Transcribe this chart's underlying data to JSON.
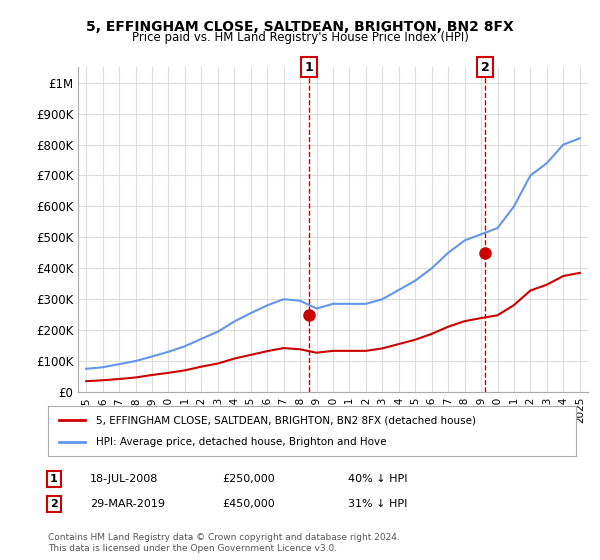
{
  "title": "5, EFFINGHAM CLOSE, SALTDEAN, BRIGHTON, BN2 8FX",
  "subtitle": "Price paid vs. HM Land Registry's House Price Index (HPI)",
  "legend_property": "5, EFFINGHAM CLOSE, SALTDEAN, BRIGHTON, BN2 8FX (detached house)",
  "legend_hpi": "HPI: Average price, detached house, Brighton and Hove",
  "footnote": "Contains HM Land Registry data © Crown copyright and database right 2024.\nThis data is licensed under the Open Government Licence v3.0.",
  "sale1_label": "1",
  "sale1_date": "18-JUL-2008",
  "sale1_price": "£250,000",
  "sale1_pct": "40% ↓ HPI",
  "sale1_year": 2008.54,
  "sale1_value": 250000,
  "sale2_label": "2",
  "sale2_date": "29-MAR-2019",
  "sale2_price": "£450,000",
  "sale2_pct": "31% ↓ HPI",
  "sale2_year": 2019.24,
  "sale2_value": 450000,
  "hpi_color": "#6495ED",
  "price_color": "#CC0000",
  "sale_marker_color": "#CC0000",
  "dashed_line_color": "#CC0000",
  "ylim": [
    0,
    1050000
  ],
  "yticks": [
    0,
    100000,
    200000,
    300000,
    400000,
    500000,
    600000,
    700000,
    800000,
    900000,
    1000000
  ],
  "ytick_labels": [
    "£0",
    "£100K",
    "£200K",
    "£300K",
    "£400K",
    "£500K",
    "£600K",
    "£700K",
    "£800K",
    "£900K",
    "£1M"
  ],
  "hpi_years": [
    1995,
    1996,
    1997,
    1998,
    1999,
    2000,
    2001,
    2002,
    2003,
    2004,
    2005,
    2006,
    2007,
    2008,
    2009,
    2010,
    2011,
    2012,
    2013,
    2014,
    2015,
    2016,
    2017,
    2018,
    2019,
    2020,
    2021,
    2022,
    2023,
    2024,
    2025
  ],
  "hpi_values": [
    75000,
    80000,
    90000,
    100000,
    115000,
    130000,
    148000,
    172000,
    195000,
    228000,
    255000,
    280000,
    300000,
    295000,
    270000,
    285000,
    285000,
    285000,
    300000,
    330000,
    360000,
    400000,
    450000,
    490000,
    510000,
    530000,
    600000,
    700000,
    740000,
    800000,
    820000
  ],
  "price_years": [
    1995,
    1996,
    1997,
    1998,
    1999,
    2000,
    2001,
    2002,
    2003,
    2004,
    2005,
    2006,
    2007,
    2008,
    2009,
    2010,
    2011,
    2012,
    2013,
    2014,
    2015,
    2016,
    2017,
    2018,
    2019,
    2020,
    2021,
    2022,
    2023,
    2024,
    2025
  ],
  "price_values": [
    35000,
    38000,
    42000,
    47000,
    55000,
    62000,
    70000,
    82000,
    92000,
    108000,
    120000,
    132000,
    142000,
    138000,
    127000,
    133000,
    133000,
    133000,
    141000,
    155000,
    169000,
    188000,
    211000,
    229000,
    239000,
    248000,
    281000,
    328000,
    347000,
    375000,
    385000
  ],
  "bg_color": "#ffffff",
  "grid_color": "#dddddd",
  "xlabel_years": [
    1995,
    1996,
    1997,
    1998,
    1999,
    2000,
    2001,
    2002,
    2003,
    2004,
    2005,
    2006,
    2007,
    2008,
    2009,
    2010,
    2011,
    2012,
    2013,
    2014,
    2015,
    2016,
    2017,
    2018,
    2019,
    2020,
    2021,
    2022,
    2023,
    2024,
    2025
  ]
}
